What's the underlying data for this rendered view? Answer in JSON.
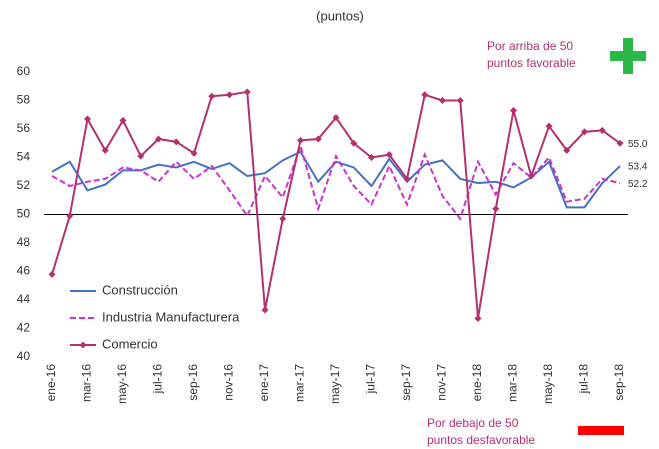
{
  "chart_data": {
    "type": "line",
    "title": "(puntos)",
    "categories": [
      "ene-16",
      null,
      "mar-16",
      null,
      "may-16",
      null,
      "jul-16",
      null,
      "sep-16",
      null,
      "nov-16",
      null,
      "ene-17",
      null,
      "mar-17",
      null,
      "may-17",
      null,
      "jul-17",
      null,
      "sep-17",
      null,
      "nov-17",
      null,
      "ene-18",
      null,
      "mar-18",
      null,
      "may-18",
      null,
      "jul-18",
      null,
      "sep-18"
    ],
    "ylim": [
      40,
      60
    ],
    "yticks": [
      40,
      42,
      44,
      46,
      48,
      50,
      52,
      54,
      56,
      58,
      60
    ],
    "reference_line": 50,
    "legend": "lower left",
    "annotations": [
      {
        "lines": [
          "Por arriba de 50",
          "puntos favorable"
        ]
      },
      {
        "lines": [
          "Por debajo de 50",
          "puntos desfavorable"
        ]
      }
    ],
    "series": [
      {
        "name": "Construcción",
        "color": "#4472c4",
        "style": "solid",
        "values": [
          53.0,
          53.7,
          51.7,
          52.1,
          53.1,
          53.1,
          53.5,
          53.3,
          53.7,
          53.2,
          53.6,
          52.7,
          52.9,
          53.8,
          54.4,
          52.3,
          53.7,
          53.3,
          52.0,
          53.9,
          52.3,
          53.5,
          53.8,
          52.5,
          52.2,
          52.3,
          51.9,
          52.6,
          53.7,
          50.5,
          50.5,
          52.2,
          53.4
        ],
        "value_labels": [
          null,
          null,
          null,
          null,
          null,
          null,
          null,
          null,
          null,
          null,
          null,
          null,
          null,
          null,
          null,
          null,
          null,
          null,
          null,
          null,
          null,
          null,
          null,
          null,
          null,
          null,
          null,
          null,
          null,
          null,
          null,
          null,
          "53.4"
        ]
      },
      {
        "name": "Industria Manufacturera",
        "color": "#cc33cc",
        "style": "dashed",
        "values": [
          52.7,
          52.0,
          52.3,
          52.5,
          53.3,
          53.1,
          52.3,
          53.7,
          52.5,
          53.4,
          51.7,
          49.9,
          52.7,
          51.2,
          54.8,
          50.4,
          54.1,
          52.0,
          50.7,
          53.4,
          50.7,
          54.2,
          51.3,
          49.7,
          53.7,
          51.4,
          53.6,
          52.6,
          54.0,
          50.9,
          51.1,
          52.5,
          52.2
        ],
        "value_labels": [
          null,
          null,
          null,
          null,
          null,
          null,
          null,
          null,
          null,
          null,
          null,
          null,
          null,
          null,
          null,
          null,
          null,
          null,
          null,
          null,
          null,
          null,
          null,
          null,
          null,
          null,
          null,
          null,
          null,
          null,
          null,
          null,
          "52.2"
        ]
      },
      {
        "name": "Comercio",
        "color": "#b5306e",
        "style": "marker",
        "values": [
          45.8,
          49.9,
          56.7,
          54.5,
          56.6,
          54.1,
          55.3,
          55.1,
          54.3,
          58.3,
          58.4,
          58.6,
          43.3,
          49.7,
          55.2,
          55.3,
          56.8,
          55.0,
          54.0,
          54.2,
          52.5,
          58.4,
          58.0,
          58.0,
          42.7,
          50.4,
          57.3,
          52.7,
          56.2,
          54.5,
          55.8,
          55.9,
          55.0
        ],
        "value_labels": [
          null,
          null,
          null,
          null,
          null,
          null,
          null,
          null,
          null,
          null,
          null,
          null,
          null,
          null,
          null,
          null,
          null,
          null,
          null,
          null,
          null,
          null,
          null,
          null,
          null,
          null,
          null,
          null,
          null,
          null,
          null,
          null,
          "55.0"
        ]
      }
    ]
  }
}
